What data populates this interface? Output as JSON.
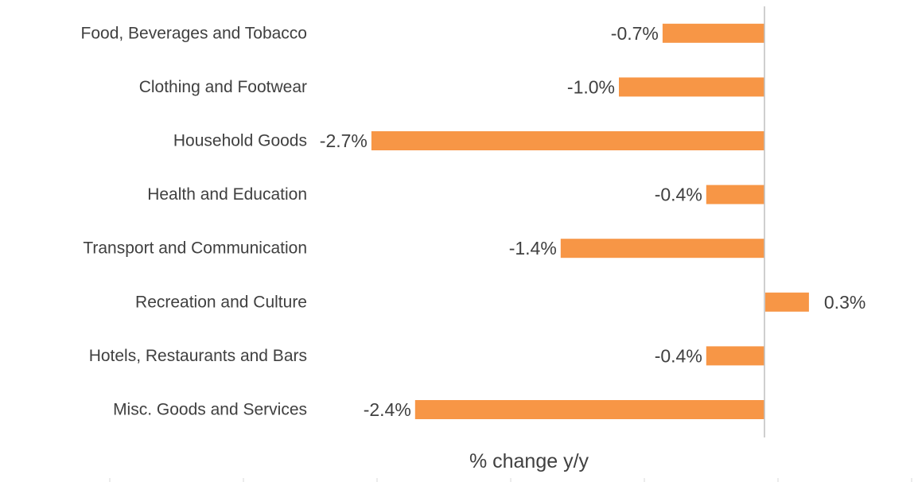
{
  "colors": {
    "bar": "#F79646",
    "axis": "#BFBFBF",
    "text": "#404040"
  },
  "chart_data": {
    "type": "bar",
    "orientation": "horizontal",
    "categories": [
      "Food, Beverages and Tobacco",
      "Clothing and Footwear",
      "Household Goods",
      "Health and Education",
      "Transport and Communication",
      "Recreation and Culture",
      "Hotels, Restaurants and Bars",
      "Misc. Goods and Services"
    ],
    "values": [
      -0.7,
      -1.0,
      -2.7,
      -0.4,
      -1.4,
      0.3,
      -0.4,
      -2.4
    ],
    "data_labels": [
      "-0.7%",
      "-1.0%",
      "-2.7%",
      "-0.4%",
      "-1.4%",
      "0.3%",
      "-0.4%",
      "-2.4%"
    ],
    "xlabel": "% change y/y",
    "ylabel": "",
    "xlim": [
      -5,
      1
    ],
    "grid": false,
    "legend": "none"
  }
}
